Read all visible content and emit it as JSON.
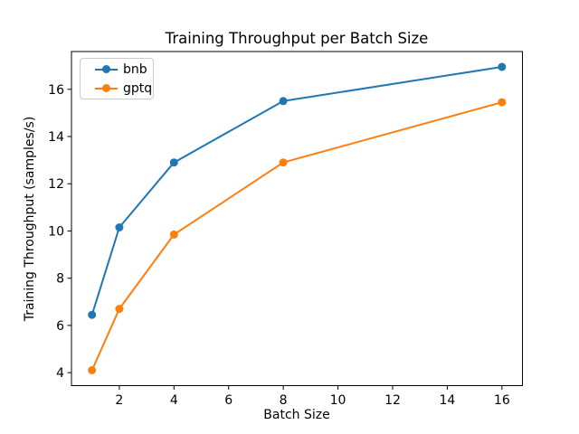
{
  "chart_data": {
    "type": "line",
    "title": "Training Throughput per Batch Size",
    "xlabel": "Batch Size",
    "ylabel": "Training Throughput (samples/s)",
    "x": [
      1,
      2,
      4,
      8,
      16
    ],
    "series": [
      {
        "name": "bnb",
        "color": "#1f77b4",
        "values": [
          6.45,
          10.15,
          12.9,
          15.5,
          16.95
        ]
      },
      {
        "name": "gptq",
        "color": "#ff7f0e",
        "values": [
          4.1,
          6.7,
          9.85,
          12.9,
          15.45
        ]
      }
    ],
    "x_ticks": [
      2,
      4,
      6,
      8,
      10,
      12,
      14,
      16
    ],
    "y_ticks": [
      4,
      6,
      8,
      10,
      12,
      14,
      16
    ],
    "xlim": [
      0.25,
      16.75
    ],
    "ylim": [
      3.45,
      17.6
    ],
    "grid": false,
    "legend_position": "upper-left",
    "marker": "circle",
    "axis_color": "#000000",
    "legend_border_color": "#cccccc",
    "background_color": "#ffffff"
  }
}
